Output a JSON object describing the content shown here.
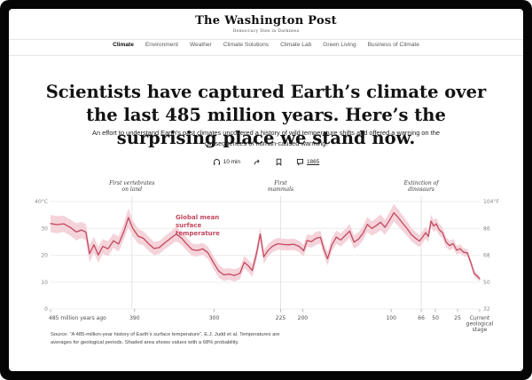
{
  "masthead": {
    "title": "The Washington Post",
    "tagline": "Democracy Dies in Darkness"
  },
  "nav": {
    "items": [
      {
        "label": "Climate",
        "active": true
      },
      {
        "label": "Environment",
        "active": false
      },
      {
        "label": "Weather",
        "active": false
      },
      {
        "label": "Climate Solutions",
        "active": false
      },
      {
        "label": "Climate Lab",
        "active": false
      },
      {
        "label": "Green Living",
        "active": false
      },
      {
        "label": "Business of Climate",
        "active": false
      }
    ]
  },
  "article": {
    "headline": "Scientists have captured Earth’s climate over the last 485 million years. Here’s the surprising place we stand now.",
    "deck": "An effort to understand Earth’s past climates uncovered a history of wild temperature shifts and offered a warning on the consequences of human-caused warming.",
    "meta": {
      "listen_label": "10 min",
      "comments_count": "1865"
    }
  },
  "chart_data": {
    "type": "line",
    "series_label_lines": [
      "Global mean",
      "surface",
      "temperature"
    ],
    "line_color": "#c2495e",
    "band_color": "#f4d3da",
    "grid_color": "#e9e9e9",
    "xlim_ma": [
      485,
      0
    ],
    "ylim_c": [
      0,
      40
    ],
    "y_axis_left": {
      "unit": "°C",
      "top_label": "40°C",
      "ticks": [
        40,
        30,
        20,
        10,
        0
      ]
    },
    "y_axis_right": {
      "unit": "°F",
      "top_label": "104°F",
      "ticks": [
        104,
        86,
        68,
        50,
        32
      ]
    },
    "x_ticks": [
      {
        "age": 485,
        "label": "485 million years ago",
        "align": "left"
      },
      {
        "age": 390,
        "label": "390"
      },
      {
        "age": 300,
        "label": "300"
      },
      {
        "age": 225,
        "label": "225"
      },
      {
        "age": 200,
        "label": "200"
      },
      {
        "age": 100,
        "label": "100"
      },
      {
        "age": 66,
        "label": "66"
      },
      {
        "age": 50,
        "label": "50"
      },
      {
        "age": 25,
        "label": "25"
      },
      {
        "age": 0,
        "lines": [
          "Current",
          "geological",
          "stage"
        ]
      }
    ],
    "annotations": [
      {
        "age": 393,
        "lines": [
          "First vertebrates",
          "on land"
        ]
      },
      {
        "age": 225,
        "lines": [
          "First",
          "mammals"
        ]
      },
      {
        "age": 66,
        "lines": [
          "Extinction of",
          "dinosaurs"
        ]
      }
    ],
    "points_format": [
      "age_ma",
      "gmst_c",
      "band_halfwidth_c"
    ],
    "points": [
      [
        485,
        31.8,
        3.2
      ],
      [
        478,
        31.4,
        3.2
      ],
      [
        470,
        31.7,
        3.0
      ],
      [
        462,
        30.2,
        3.0
      ],
      [
        456,
        28.7,
        3.2
      ],
      [
        450,
        29.4,
        3.0
      ],
      [
        445,
        28.6,
        3.0
      ],
      [
        441,
        20.6,
        3.2
      ],
      [
        436,
        23.9,
        2.9
      ],
      [
        431,
        20.1,
        3.0
      ],
      [
        426,
        23.3,
        2.7
      ],
      [
        420,
        22.4,
        2.8
      ],
      [
        414,
        25.4,
        2.7
      ],
      [
        408,
        24.2,
        2.8
      ],
      [
        402,
        28.9,
        3.0
      ],
      [
        397,
        34.0,
        3.6
      ],
      [
        392,
        30.0,
        3.0
      ],
      [
        386,
        27.1,
        2.8
      ],
      [
        380,
        26.3,
        2.6
      ],
      [
        374,
        24.2,
        2.6
      ],
      [
        368,
        22.5,
        2.5
      ],
      [
        362,
        22.9,
        2.4
      ],
      [
        356,
        24.6,
        2.4
      ],
      [
        350,
        26.1,
        2.5
      ],
      [
        343,
        27.9,
        2.7
      ],
      [
        337,
        26.4,
        2.5
      ],
      [
        331,
        24.1,
        2.4
      ],
      [
        325,
        22.1,
        2.3
      ],
      [
        319,
        21.8,
        2.3
      ],
      [
        313,
        22.4,
        2.2
      ],
      [
        307,
        20.9,
        2.3
      ],
      [
        301,
        17.4,
        2.4
      ],
      [
        295,
        14.1,
        2.4
      ],
      [
        289,
        12.7,
        2.3
      ],
      [
        283,
        13.0,
        2.2
      ],
      [
        277,
        12.5,
        2.3
      ],
      [
        271,
        13.3,
        2.2
      ],
      [
        266,
        17.4,
        2.3
      ],
      [
        261,
        15.9,
        2.2
      ],
      [
        257,
        14.3,
        2.3
      ],
      [
        252,
        20.9,
        2.4
      ],
      [
        248,
        27.9,
        2.6
      ],
      [
        244,
        19.4,
        2.5
      ],
      [
        239,
        21.9,
        2.3
      ],
      [
        234,
        23.4,
        2.2
      ],
      [
        228,
        24.3,
        2.2
      ],
      [
        222,
        24.0,
        2.1
      ],
      [
        216,
        23.9,
        2.1
      ],
      [
        210,
        24.1,
        2.1
      ],
      [
        204,
        23.3,
        2.1
      ],
      [
        199,
        21.7,
        2.2
      ],
      [
        195,
        25.5,
        2.3
      ],
      [
        190,
        25.1,
        2.3
      ],
      [
        185,
        26.3,
        2.4
      ],
      [
        180,
        26.7,
        2.4
      ],
      [
        176,
        22.1,
        2.4
      ],
      [
        172,
        18.7,
        2.5
      ],
      [
        167,
        23.9,
        2.4
      ],
      [
        162,
        26.7,
        2.5
      ],
      [
        157,
        25.7,
        2.4
      ],
      [
        152,
        27.3,
        2.5
      ],
      [
        147,
        29.0,
        2.6
      ],
      [
        142,
        24.9,
        2.5
      ],
      [
        137,
        26.0,
        2.5
      ],
      [
        132,
        28.1,
        2.6
      ],
      [
        127,
        31.5,
        2.8
      ],
      [
        122,
        30.0,
        2.7
      ],
      [
        117,
        31.0,
        2.8
      ],
      [
        112,
        32.3,
        2.9
      ],
      [
        107,
        30.4,
        2.8
      ],
      [
        102,
        33.0,
        3.0
      ],
      [
        97,
        35.8,
        3.3
      ],
      [
        92,
        34.0,
        3.1
      ],
      [
        87,
        31.9,
        2.9
      ],
      [
        82,
        29.9,
        2.7
      ],
      [
        77,
        27.6,
        2.5
      ],
      [
        72,
        26.2,
        2.3
      ],
      [
        68,
        25.3,
        2.2
      ],
      [
        64,
        27.0,
        2.2
      ],
      [
        61,
        28.4,
        2.2
      ],
      [
        58,
        27.0,
        2.1
      ],
      [
        55,
        32.7,
        2.4
      ],
      [
        52,
        30.9,
        2.2
      ],
      [
        49,
        31.7,
        2.2
      ],
      [
        46,
        29.6,
        2.1
      ],
      [
        42,
        28.4,
        2.0
      ],
      [
        38,
        24.9,
        1.9
      ],
      [
        34,
        23.6,
        1.8
      ],
      [
        30,
        24.3,
        1.7
      ],
      [
        26,
        21.9,
        1.7
      ],
      [
        22,
        22.4,
        1.6
      ],
      [
        18,
        21.1,
        1.5
      ],
      [
        14,
        20.9,
        1.4
      ],
      [
        10,
        17.3,
        1.3
      ],
      [
        6,
        13.1,
        1.2
      ],
      [
        3,
        12.3,
        1.1
      ],
      [
        0,
        11.2,
        1.0
      ]
    ],
    "source_line1": "Source: “A 485-million-year history of Earth’s surface temperature”, E.J. Judd et al. Temperatures are",
    "source_line2": "averages for geological periods. Shaded area shows values with a 68% probability."
  }
}
